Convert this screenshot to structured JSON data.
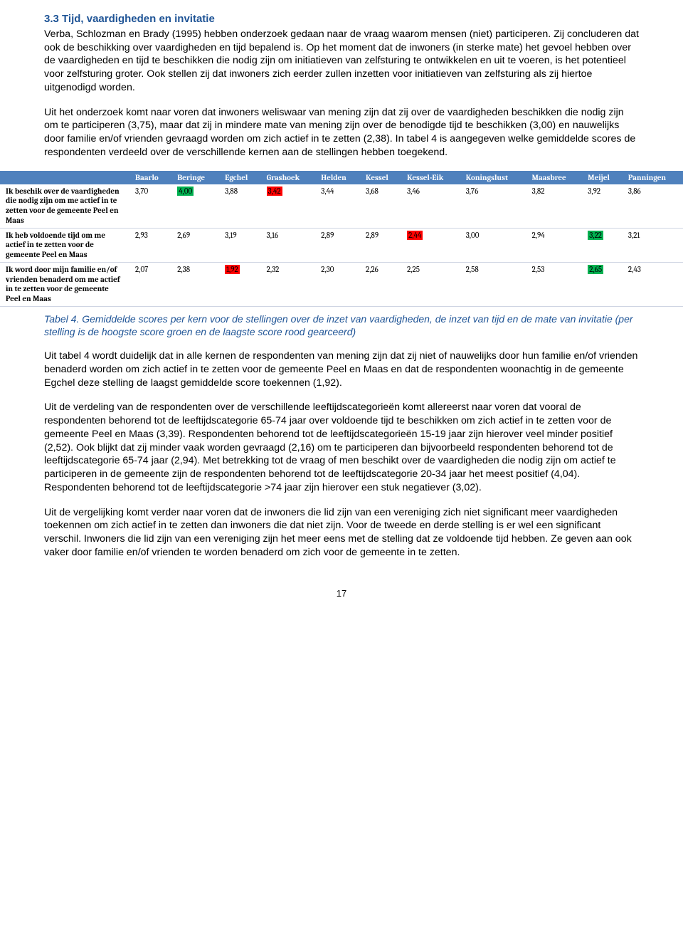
{
  "heading": "3.3    Tijd, vaardigheden en invitatie",
  "para1": "Verba, Schlozman en Brady (1995) hebben onderzoek gedaan naar de vraag waarom mensen (niet) participeren. Zij concluderen dat ook de beschikking over vaardigheden en tijd bepalend is. Op het moment dat de inwoners (in sterke mate) het gevoel hebben over de vaardigheden en tijd te beschikken die nodig zijn om initiatieven van zelfsturing te ontwikkelen en uit te voeren, is het potentieel voor zelfsturing groter. Ook stellen zij dat inwoners zich eerder zullen inzetten voor initiatieven van zelfsturing als zij hiertoe uitgenodigd worden.",
  "para2": "Uit het onderzoek komt naar voren dat inwoners weliswaar van mening zijn dat zij over de vaardigheden beschikken die nodig zijn om te participeren (3,75), maar dat zij in mindere mate van mening zijn over de benodigde tijd te beschikken (3,00) en nauwelijks door familie en/of vrienden gevraagd worden om zich actief in te zetten (2,38). In tabel 4 is aangegeven welke gemiddelde scores de respondenten verdeeld over de verschillende kernen aan de stellingen hebben toegekend.",
  "table": {
    "columns": [
      "",
      "Baarlo",
      "Beringe",
      "Egchel",
      "Grashoek",
      "Helden",
      "Kessel",
      "Kessel-Eik",
      "Koningslust",
      "Maasbree",
      "Meijel",
      "Panningen"
    ],
    "rows": [
      {
        "label": "Ik beschik over de vaardigheden die nodig zijn om me actief in te zetten voor de gemeente Peel en Maas",
        "cells": [
          {
            "v": "3,70"
          },
          {
            "v": "4,00",
            "hl": "green"
          },
          {
            "v": "3,88"
          },
          {
            "v": "3,42",
            "hl": "red"
          },
          {
            "v": "3,44"
          },
          {
            "v": "3,68"
          },
          {
            "v": "3,46"
          },
          {
            "v": "3,76"
          },
          {
            "v": "3,82"
          },
          {
            "v": "3,92"
          },
          {
            "v": "3,86"
          }
        ]
      },
      {
        "label": "Ik heb voldoende tijd om me actief in te zetten voor de gemeente Peel en Maas",
        "cells": [
          {
            "v": "2,93"
          },
          {
            "v": "2,69"
          },
          {
            "v": "3,19"
          },
          {
            "v": "3,16"
          },
          {
            "v": "2,89"
          },
          {
            "v": "2,89"
          },
          {
            "v": "2,44",
            "hl": "red"
          },
          {
            "v": "3,00"
          },
          {
            "v": "2,94"
          },
          {
            "v": "3,22",
            "hl": "green"
          },
          {
            "v": "3,21"
          }
        ]
      },
      {
        "label": "Ik word door mijn familie en/of vrienden benaderd om me actief in te zetten voor de gemeente Peel en Maas",
        "cells": [
          {
            "v": "2,07"
          },
          {
            "v": "2,38"
          },
          {
            "v": "1,92",
            "hl": "red"
          },
          {
            "v": "2,32"
          },
          {
            "v": "2,30"
          },
          {
            "v": "2,26"
          },
          {
            "v": "2,25"
          },
          {
            "v": "2,58"
          },
          {
            "v": "2,53"
          },
          {
            "v": "2,65",
            "hl": "green"
          },
          {
            "v": "2,43"
          }
        ]
      }
    ]
  },
  "caption": "Tabel 4. Gemiddelde scores per kern voor de stellingen over de inzet van vaardigheden, de inzet van tijd en de mate van invitatie (per stelling is de hoogste score groen en de laagste score rood gearceerd)",
  "para3": "Uit tabel 4 wordt duidelijk dat in alle kernen de respondenten van mening zijn dat zij niet of nauwelijks door hun familie en/of vrienden benaderd worden om zich actief in te zetten voor de gemeente Peel en Maas en dat de respondenten woonachtig in de gemeente Egchel deze stelling de laagst gemiddelde score toekennen (1,92).",
  "para4": "Uit de verdeling van de respondenten over de verschillende leeftijdscategorieën komt allereerst naar voren dat vooral de respondenten behorend tot de leeftijdscategorie 65-74 jaar over voldoende tijd te beschikken om zich actief in te zetten voor de gemeente Peel en Maas (3,39). Respondenten behorend tot de leeftijdscategorieën 15-19 jaar zijn hierover veel minder positief (2,52). Ook blijkt dat zij minder vaak worden gevraagd (2,16) om te participeren dan bijvoorbeeld respondenten behorend tot de leeftijdscategorie 65-74 jaar (2,94). Met betrekking tot de vraag of men beschikt over de vaardigheden die nodig zijn om actief te participeren in de gemeente zijn de respondenten behorend tot de leeftijdscategorie 20-34 jaar het meest positief (4,04). Respondenten behorend tot de leeftijdscategorie >74 jaar zijn hierover een stuk negatiever (3,02).",
  "para5": "Uit de vergelijking komt verder naar voren dat de inwoners die lid zijn van een vereniging zich niet significant meer vaardigheden toekennen om zich actief in te zetten dan inwoners die dat niet zijn. Voor de tweede en derde stelling is er wel een significant verschil. Inwoners die lid zijn van een vereniging zijn het meer eens met de stelling dat ze voldoende tijd hebben. Ze geven aan ook vaker door familie en/of vrienden te worden benaderd om zich voor de gemeente in te zetten.",
  "pagenum": "17",
  "colors": {
    "heading": "#1f5496",
    "caption": "#1f5496",
    "thead_bg": "#4f81bd",
    "hl_green": "#00b050",
    "hl_red": "#ff0000",
    "row_border": "#cfd5e3"
  }
}
